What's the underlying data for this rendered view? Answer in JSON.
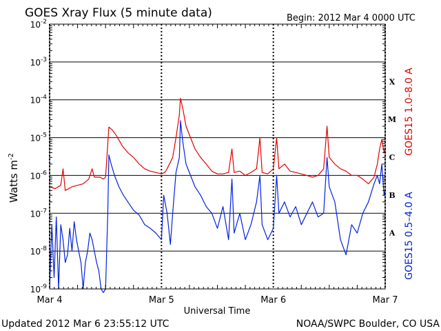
{
  "chart_data": {
    "type": "line",
    "title": "GOES Xray Flux (5 minute data)",
    "begin_label": "Begin:  2012 Mar 4 0000 UTC",
    "ylabel": "Watts m",
    "ylabel_exp": "-2",
    "xlabel": "Universal Time",
    "x_ticks": [
      "Mar 4",
      "Mar 5",
      "Mar 6",
      "Mar 7"
    ],
    "x_range_days": [
      0,
      3
    ],
    "y_scale": "log",
    "ylim": [
      1e-09,
      0.01
    ],
    "y_tick_base": "10",
    "y_tick_exponents": [
      "-9",
      "-8",
      "-7",
      "-6",
      "-5",
      "-4",
      "-3",
      "-2"
    ],
    "flare_classes": [
      {
        "label": "X",
        "flux": 0.0001
      },
      {
        "label": "M",
        "flux": 1e-05
      },
      {
        "label": "C",
        "flux": 1e-06
      },
      {
        "label": "B",
        "flux": 1e-07
      },
      {
        "label": "A",
        "flux": 1e-08
      }
    ],
    "series": [
      {
        "name": "GOES15 1.0–8.0 A",
        "color": "#e00000",
        "points": [
          [
            0.0,
            5e-07
          ],
          [
            0.05,
            4.5e-07
          ],
          [
            0.1,
            5.5e-07
          ],
          [
            0.12,
            1.5e-06
          ],
          [
            0.14,
            4e-07
          ],
          [
            0.2,
            5e-07
          ],
          [
            0.25,
            5.5e-07
          ],
          [
            0.3,
            6e-07
          ],
          [
            0.35,
            8e-07
          ],
          [
            0.38,
            1.5e-06
          ],
          [
            0.4,
            9e-07
          ],
          [
            0.45,
            9e-07
          ],
          [
            0.48,
            8e-07
          ],
          [
            0.5,
            9e-07
          ],
          [
            0.53,
            1.9e-05
          ],
          [
            0.56,
            1.6e-05
          ],
          [
            0.6,
            1.1e-05
          ],
          [
            0.65,
            6e-06
          ],
          [
            0.7,
            4e-06
          ],
          [
            0.75,
            3e-06
          ],
          [
            0.8,
            2e-06
          ],
          [
            0.85,
            1.5e-06
          ],
          [
            0.9,
            1.3e-06
          ],
          [
            0.95,
            1.2e-06
          ],
          [
            1.0,
            1.1e-06
          ],
          [
            1.03,
            1.2e-06
          ],
          [
            1.05,
            1.5e-06
          ],
          [
            1.1,
            3e-06
          ],
          [
            1.13,
            1e-05
          ],
          [
            1.16,
            4e-05
          ],
          [
            1.17,
            0.00011
          ],
          [
            1.19,
            6e-05
          ],
          [
            1.22,
            2e-05
          ],
          [
            1.26,
            1e-05
          ],
          [
            1.3,
            5e-06
          ],
          [
            1.35,
            3e-06
          ],
          [
            1.4,
            2e-06
          ],
          [
            1.45,
            1.3e-06
          ],
          [
            1.5,
            1.1e-06
          ],
          [
            1.55,
            1.1e-06
          ],
          [
            1.6,
            1.2e-06
          ],
          [
            1.63,
            5e-06
          ],
          [
            1.65,
            1.2e-06
          ],
          [
            1.7,
            1.3e-06
          ],
          [
            1.75,
            1e-06
          ],
          [
            1.8,
            1.2e-06
          ],
          [
            1.85,
            1.5e-06
          ],
          [
            1.88,
            1e-05
          ],
          [
            1.9,
            1.2e-06
          ],
          [
            1.95,
            1.1e-06
          ],
          [
            2.0,
            1.5e-06
          ],
          [
            2.03,
            1e-05
          ],
          [
            2.05,
            1.5e-06
          ],
          [
            2.1,
            2e-06
          ],
          [
            2.15,
            1.3e-06
          ],
          [
            2.2,
            1.2e-06
          ],
          [
            2.25,
            1.1e-06
          ],
          [
            2.3,
            1e-06
          ],
          [
            2.35,
            9e-07
          ],
          [
            2.4,
            1e-06
          ],
          [
            2.45,
            1.5e-06
          ],
          [
            2.48,
            2e-05
          ],
          [
            2.5,
            3e-06
          ],
          [
            2.55,
            2e-06
          ],
          [
            2.6,
            1.5e-06
          ],
          [
            2.65,
            1.3e-06
          ],
          [
            2.7,
            1e-06
          ],
          [
            2.75,
            1e-06
          ],
          [
            2.8,
            8e-07
          ],
          [
            2.85,
            6e-07
          ],
          [
            2.9,
            9e-07
          ],
          [
            2.93,
            2e-06
          ],
          [
            2.95,
            5e-06
          ],
          [
            2.97,
            9e-06
          ],
          [
            2.99,
            4e-06
          ],
          [
            3.0,
            5e-06
          ]
        ]
      },
      {
        "name": "GOES15 0.5–4.0 A",
        "color": "#0020e0",
        "points": [
          [
            0.0,
            1e-09
          ],
          [
            0.02,
            5e-08
          ],
          [
            0.04,
            2e-09
          ],
          [
            0.06,
            8e-08
          ],
          [
            0.08,
            1e-09
          ],
          [
            0.1,
            5e-08
          ],
          [
            0.12,
            2e-08
          ],
          [
            0.14,
            5e-09
          ],
          [
            0.16,
            8e-09
          ],
          [
            0.18,
            4e-08
          ],
          [
            0.2,
            1e-08
          ],
          [
            0.22,
            6e-08
          ],
          [
            0.24,
            2e-08
          ],
          [
            0.26,
            1e-08
          ],
          [
            0.28,
            5e-09
          ],
          [
            0.3,
            1e-09
          ],
          [
            0.32,
            5e-09
          ],
          [
            0.34,
            1e-08
          ],
          [
            0.36,
            3e-08
          ],
          [
            0.38,
            2e-08
          ],
          [
            0.4,
            1e-08
          ],
          [
            0.42,
            5e-09
          ],
          [
            0.44,
            3e-09
          ],
          [
            0.46,
            1e-09
          ],
          [
            0.48,
            8e-10
          ],
          [
            0.5,
            1e-09
          ],
          [
            0.52,
            1e-07
          ],
          [
            0.53,
            3.5e-06
          ],
          [
            0.55,
            2e-06
          ],
          [
            0.58,
            1e-06
          ],
          [
            0.62,
            5e-07
          ],
          [
            0.66,
            3e-07
          ],
          [
            0.7,
            2e-07
          ],
          [
            0.75,
            1.2e-07
          ],
          [
            0.8,
            9e-08
          ],
          [
            0.85,
            5e-08
          ],
          [
            0.9,
            4e-08
          ],
          [
            0.95,
            3e-08
          ],
          [
            1.0,
            2e-08
          ],
          [
            1.02,
            3e-07
          ],
          [
            1.05,
            1e-07
          ],
          [
            1.08,
            1.5e-08
          ],
          [
            1.1,
            1e-07
          ],
          [
            1.13,
            1.2e-06
          ],
          [
            1.16,
            3e-06
          ],
          [
            1.17,
            2.8e-05
          ],
          [
            1.19,
            8e-06
          ],
          [
            1.22,
            2e-06
          ],
          [
            1.26,
            1e-06
          ],
          [
            1.3,
            5e-07
          ],
          [
            1.35,
            3e-07
          ],
          [
            1.4,
            1.5e-07
          ],
          [
            1.45,
            1e-07
          ],
          [
            1.5,
            4e-08
          ],
          [
            1.55,
            1.5e-07
          ],
          [
            1.6,
            2e-08
          ],
          [
            1.63,
            8e-07
          ],
          [
            1.65,
            3e-08
          ],
          [
            1.7,
            1e-07
          ],
          [
            1.75,
            2e-08
          ],
          [
            1.8,
            5e-08
          ],
          [
            1.85,
            2e-07
          ],
          [
            1.88,
            1e-06
          ],
          [
            1.9,
            5e-08
          ],
          [
            1.95,
            2e-08
          ],
          [
            2.0,
            4e-08
          ],
          [
            2.03,
            1e-06
          ],
          [
            2.05,
            1e-07
          ],
          [
            2.1,
            2e-07
          ],
          [
            2.15,
            8e-08
          ],
          [
            2.2,
            1.5e-07
          ],
          [
            2.25,
            5e-08
          ],
          [
            2.3,
            1e-07
          ],
          [
            2.35,
            2e-07
          ],
          [
            2.4,
            8e-08
          ],
          [
            2.45,
            1e-07
          ],
          [
            2.48,
            3e-06
          ],
          [
            2.5,
            5e-07
          ],
          [
            2.55,
            2e-07
          ],
          [
            2.6,
            2e-08
          ],
          [
            2.65,
            8e-09
          ],
          [
            2.7,
            5e-08
          ],
          [
            2.75,
            3e-08
          ],
          [
            2.8,
            1e-07
          ],
          [
            2.85,
            2e-07
          ],
          [
            2.9,
            6e-07
          ],
          [
            2.93,
            1e-06
          ],
          [
            2.95,
            6e-07
          ],
          [
            2.97,
            2e-06
          ],
          [
            2.99,
            3e-07
          ],
          [
            3.0,
            4e-07
          ]
        ]
      }
    ]
  },
  "footer": {
    "updated": "Updated 2012 Mar  6 23:55:12 UTC",
    "source": "NOAA/SWPC Boulder, CO USA"
  }
}
